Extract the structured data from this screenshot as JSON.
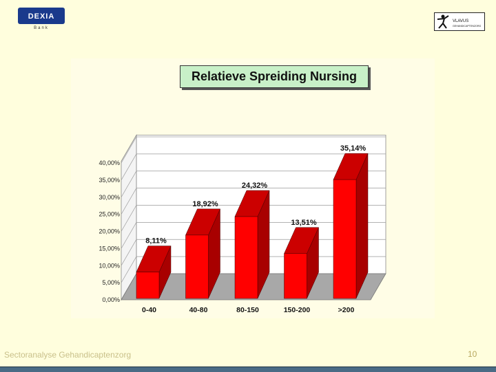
{
  "header": {
    "left_logo_text": "DEXIA",
    "left_logo_subtext": "Bank",
    "right_logo_text": "VLAVUS",
    "right_logo_subtext": "GEHANDICAPTENZORG"
  },
  "colors": {
    "background": "#fffedd",
    "bar_front": "#ff0000",
    "bar_side": "#a80000",
    "bar_top": "#cc0000",
    "title_box": "#c8f0c8",
    "floor": "#a8a8a8"
  },
  "footer": {
    "text": "Sectoranalyse Gehandicaptenzorg",
    "page_number": "10"
  },
  "chart_data": {
    "type": "bar",
    "title": "Relatieve Spreiding Nursing",
    "categories": [
      "0-40",
      "40-80",
      "80-150",
      "150-200",
      ">200"
    ],
    "values": [
      8.11,
      18.92,
      24.32,
      13.51,
      35.14
    ],
    "data_labels": [
      "8,11%",
      "18,92%",
      "24,32%",
      "13,51%",
      "35,14%"
    ],
    "y_ticks": [
      "0,00%",
      "5,00%",
      "10,00%",
      "15,00%",
      "20,00%",
      "25,00%",
      "30,00%",
      "35,00%",
      "40,00%"
    ],
    "ylim": [
      0,
      40
    ],
    "grid": true,
    "legend": "none",
    "style": "3d"
  }
}
